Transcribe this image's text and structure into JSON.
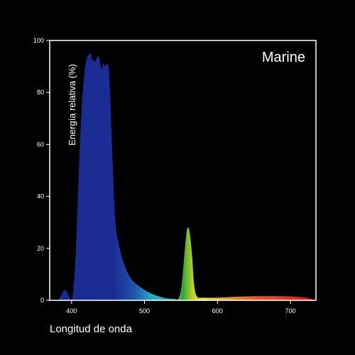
{
  "chart_data": {
    "type": "area",
    "title": "Marine",
    "xlabel": "Longitud de onda",
    "ylabel": "Energía relativa (%)",
    "xlim": [
      370,
      735
    ],
    "ylim": [
      0,
      100
    ],
    "x_ticks": [
      400,
      500,
      600,
      700
    ],
    "y_ticks": [
      0,
      20,
      40,
      60,
      80,
      100
    ],
    "grid": false,
    "series": [
      {
        "x": [
          382,
          386,
          390,
          394,
          398,
          400,
          402,
          406,
          410,
          414,
          418,
          420,
          422,
          426,
          428,
          432,
          436,
          438,
          441,
          443,
          446,
          449,
          452,
          456,
          460,
          466,
          472,
          480,
          490,
          500,
          510,
          520,
          530,
          540,
          546,
          550,
          553,
          556,
          558,
          560,
          562,
          565,
          568,
          572,
          580,
          600,
          620,
          640,
          660,
          680,
          700,
          715,
          725,
          732
        ],
        "y": [
          0,
          2,
          4,
          3,
          0.5,
          0.5,
          3,
          20,
          50,
          75,
          88,
          92,
          94,
          95,
          93,
          92,
          94,
          93,
          89,
          91,
          90,
          91,
          85,
          55,
          30,
          20,
          14,
          9,
          6,
          4,
          2.5,
          1.5,
          0.8,
          0.6,
          0.5,
          4,
          12,
          22,
          27,
          28,
          26,
          18,
          6,
          1.5,
          1,
          1,
          1.3,
          1.5,
          1.6,
          1.6,
          1.5,
          1.2,
          0.8,
          0.3
        ]
      }
    ],
    "colors": {
      "background": "#000000",
      "axes": "#ffffff",
      "deep_blue": "#1a2a8f",
      "cyan": "#27a6c8",
      "green": "#33b04a",
      "yellow": "#f2e21d",
      "orange": "#e8862a",
      "red": "#d9271e"
    }
  }
}
